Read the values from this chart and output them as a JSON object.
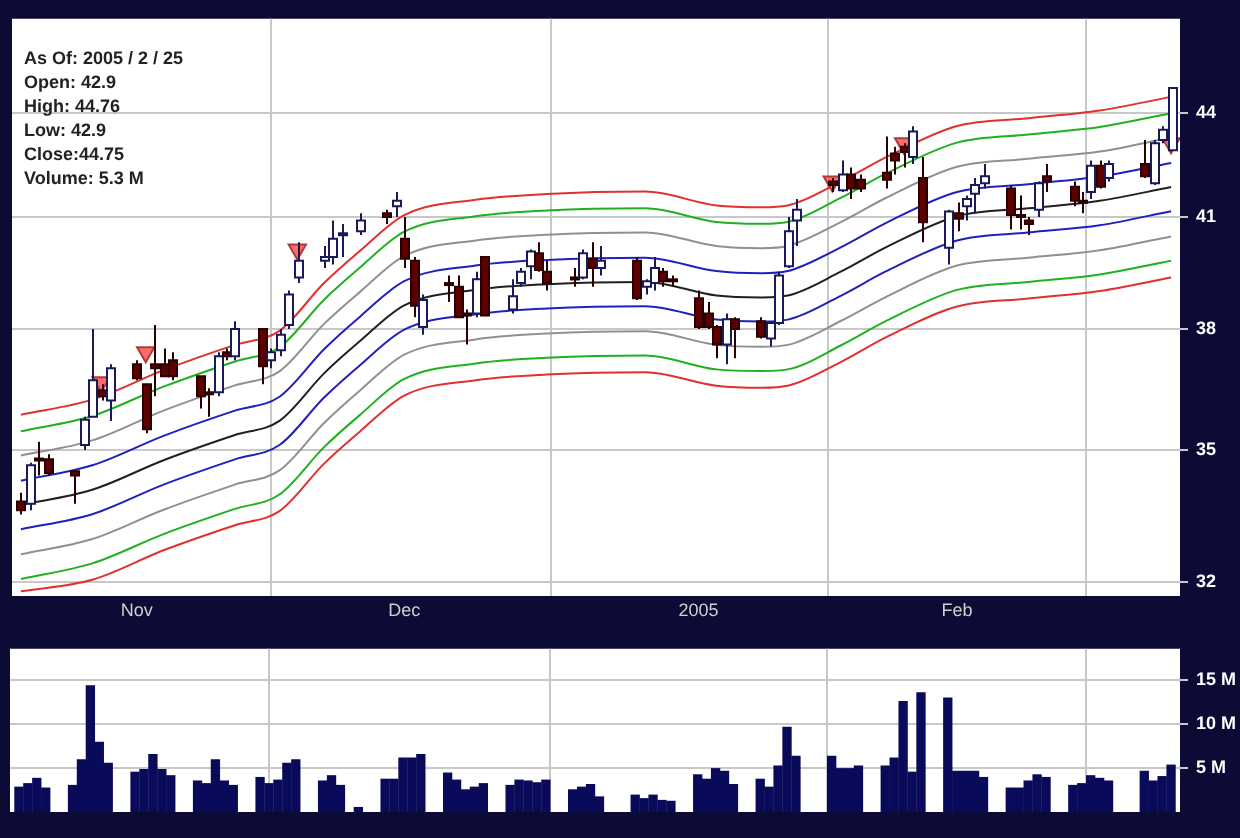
{
  "chart_data": [
    {
      "type": "candlestick",
      "x": [
        "2004-10-19",
        "2004-10-20",
        "2004-10-21",
        "2004-10-22",
        "2004-10-25",
        "2004-10-26",
        "2004-10-27",
        "2004-10-28",
        "2004-10-29",
        "2004-11-01",
        "2004-11-02",
        "2004-11-03",
        "2004-11-04",
        "2004-11-05",
        "2004-11-08",
        "2004-11-09",
        "2004-11-10",
        "2004-11-11",
        "2004-11-12",
        "2004-11-15",
        "2004-11-16",
        "2004-11-17",
        "2004-11-18",
        "2004-11-19",
        "2004-11-22",
        "2004-11-23",
        "2004-11-24",
        "2004-11-26",
        "2004-11-29",
        "2004-11-30",
        "2004-12-01",
        "2004-12-02",
        "2004-12-03",
        "2004-12-06",
        "2004-12-07",
        "2004-12-08",
        "2004-12-09",
        "2004-12-10",
        "2004-12-13",
        "2004-12-14",
        "2004-12-15",
        "2004-12-16",
        "2004-12-17",
        "2004-12-20",
        "2004-12-21",
        "2004-12-22",
        "2004-12-23",
        "2004-12-27",
        "2004-12-28",
        "2004-12-29",
        "2004-12-30",
        "2004-12-31",
        "2005-01-03",
        "2005-01-04",
        "2005-01-05",
        "2005-01-06",
        "2005-01-07",
        "2005-01-10",
        "2005-01-11",
        "2005-01-12",
        "2005-01-13",
        "2005-01-14",
        "2005-01-18",
        "2005-01-19",
        "2005-01-20",
        "2005-01-21",
        "2005-01-24",
        "2005-01-25",
        "2005-01-26",
        "2005-01-27",
        "2005-01-28",
        "2005-01-31",
        "2005-02-01",
        "2005-02-02",
        "2005-02-03",
        "2005-02-04",
        "2005-02-07",
        "2005-02-08",
        "2005-02-09",
        "2005-02-10",
        "2005-02-11",
        "2005-02-14",
        "2005-02-15",
        "2005-02-16",
        "2005-02-17",
        "2005-02-18",
        "2005-02-22",
        "2005-02-23",
        "2005-02-24",
        "2005-02-25"
      ],
      "ohlc": [
        [
          33.8,
          34.0,
          33.5,
          33.6
        ],
        [
          33.75,
          34.7,
          33.6,
          34.64
        ],
        [
          34.8,
          35.2,
          34.4,
          34.8
        ],
        [
          34.78,
          34.9,
          34.4,
          34.46
        ],
        [
          34.5,
          34.5,
          33.75,
          34.4
        ],
        [
          35.12,
          35.8,
          35.0,
          35.73
        ],
        [
          35.8,
          38.0,
          35.8,
          36.7
        ],
        [
          36.45,
          36.6,
          36.2,
          36.3
        ],
        [
          36.2,
          37.1,
          35.7,
          37.0
        ],
        [
          37.1,
          37.2,
          36.7,
          36.75
        ],
        [
          36.6,
          36.6,
          35.4,
          35.5
        ],
        [
          37.1,
          38.1,
          36.3,
          37.0
        ],
        [
          37.1,
          37.5,
          36.8,
          36.8
        ],
        [
          37.2,
          37.4,
          36.7,
          36.8
        ],
        [
          36.8,
          36.8,
          36.0,
          36.3
        ],
        [
          36.4,
          36.5,
          35.8,
          36.35
        ],
        [
          36.4,
          37.4,
          36.3,
          37.3
        ],
        [
          37.4,
          37.5,
          37.2,
          37.3
        ],
        [
          37.3,
          38.2,
          37.2,
          38.0
        ],
        [
          38.0,
          38.0,
          36.6,
          37.05
        ],
        [
          37.2,
          37.5,
          37.0,
          37.4
        ],
        [
          37.45,
          38.0,
          37.3,
          37.85
        ],
        [
          38.1,
          39.0,
          38.0,
          38.9
        ],
        [
          39.35,
          40.3,
          39.2,
          39.8
        ],
        [
          39.8,
          40.2,
          39.6,
          39.9
        ],
        [
          39.9,
          40.9,
          39.7,
          40.4
        ],
        [
          40.5,
          40.8,
          39.9,
          40.55
        ],
        [
          40.6,
          41.1,
          40.5,
          40.9
        ],
        [
          41.1,
          41.2,
          40.8,
          41.0
        ],
        [
          41.3,
          41.7,
          41.0,
          41.45
        ],
        [
          40.4,
          41.0,
          39.6,
          39.85
        ],
        [
          39.8,
          39.9,
          38.3,
          38.6
        ],
        [
          38.05,
          38.9,
          37.85,
          38.75
        ],
        [
          39.2,
          39.4,
          38.7,
          39.15
        ],
        [
          39.1,
          39.4,
          38.3,
          38.3
        ],
        [
          38.4,
          38.5,
          37.6,
          38.35
        ],
        [
          38.4,
          39.5,
          38.3,
          39.3
        ],
        [
          39.9,
          39.9,
          38.35,
          38.35
        ],
        [
          38.5,
          39.3,
          38.4,
          38.85
        ],
        [
          39.2,
          39.6,
          39.1,
          39.5
        ],
        [
          39.65,
          40.1,
          39.3,
          40.05
        ],
        [
          40.0,
          40.3,
          39.5,
          39.55
        ],
        [
          39.5,
          39.8,
          39.0,
          39.2
        ],
        [
          39.35,
          39.6,
          39.1,
          39.35
        ],
        [
          39.35,
          40.1,
          39.3,
          40.0
        ],
        [
          39.85,
          40.3,
          39.1,
          39.6
        ],
        [
          39.6,
          40.2,
          39.4,
          39.8
        ],
        [
          39.8,
          39.9,
          38.75,
          38.8
        ],
        [
          39.1,
          39.3,
          38.9,
          39.25
        ],
        [
          39.2,
          39.9,
          39.0,
          39.6
        ],
        [
          39.5,
          39.6,
          39.1,
          39.25
        ],
        [
          39.3,
          39.4,
          39.1,
          39.25
        ],
        [
          38.8,
          39.0,
          38.0,
          38.05
        ],
        [
          38.4,
          38.7,
          38.0,
          38.05
        ],
        [
          38.05,
          38.1,
          37.25,
          37.6
        ],
        [
          37.6,
          38.4,
          37.1,
          38.25
        ],
        [
          38.25,
          38.3,
          37.25,
          38.0
        ],
        [
          38.2,
          38.3,
          37.75,
          37.8
        ],
        [
          37.75,
          38.2,
          37.55,
          38.15
        ],
        [
          38.15,
          39.5,
          38.1,
          39.4
        ],
        [
          39.65,
          41.0,
          39.6,
          40.6
        ],
        [
          40.9,
          41.5,
          40.2,
          41.2
        ],
        [
          42.0,
          42.1,
          41.7,
          41.9
        ],
        [
          41.75,
          42.6,
          41.7,
          42.2
        ],
        [
          42.2,
          42.4,
          41.5,
          41.8
        ],
        [
          42.05,
          42.2,
          41.7,
          41.8
        ],
        [
          42.25,
          43.3,
          41.8,
          42.05
        ],
        [
          42.8,
          43.0,
          42.2,
          42.6
        ],
        [
          43.0,
          43.1,
          42.4,
          42.85
        ],
        [
          42.7,
          43.6,
          42.5,
          43.45
        ],
        [
          42.1,
          42.7,
          40.3,
          40.85
        ],
        [
          40.15,
          41.2,
          39.7,
          41.15
        ],
        [
          41.1,
          41.4,
          40.6,
          40.95
        ],
        [
          41.3,
          41.6,
          40.9,
          41.5
        ],
        [
          41.65,
          42.1,
          41.1,
          41.9
        ],
        [
          41.95,
          42.5,
          41.8,
          42.15
        ],
        [
          41.8,
          41.9,
          40.65,
          41.05
        ],
        [
          41.05,
          41.6,
          40.65,
          41.0
        ],
        [
          40.9,
          41.0,
          40.5,
          40.8
        ],
        [
          41.2,
          42.0,
          41.0,
          41.95
        ],
        [
          42.15,
          42.5,
          41.7,
          42.0
        ],
        [
          41.85,
          42.0,
          41.3,
          41.45
        ],
        [
          41.45,
          41.7,
          41.1,
          41.45
        ],
        [
          41.7,
          42.6,
          41.5,
          42.45
        ],
        [
          42.45,
          42.6,
          41.8,
          41.85
        ],
        [
          42.1,
          42.6,
          42.0,
          42.5
        ],
        [
          42.5,
          43.2,
          42.1,
          42.15
        ],
        [
          41.95,
          43.2,
          41.9,
          43.1
        ],
        [
          43.2,
          43.6,
          43.1,
          43.5
        ],
        [
          42.9,
          44.76,
          42.9,
          44.75
        ]
      ],
      "series": [
        {
          "type": "line",
          "color": "#e03030",
          "x": [
            "2004-10-19",
            "2004-10-27",
            "2004-11-04",
            "2004-11-12",
            "2004-11-17",
            "2004-11-22",
            "2004-11-26",
            "2004-12-01",
            "2004-12-09",
            "2004-12-17",
            "2004-12-28",
            "2005-01-05",
            "2005-01-10",
            "2005-01-13",
            "2005-01-19",
            "2005-01-24",
            "2005-02-01",
            "2005-02-09",
            "2005-02-17",
            "2005-02-25"
          ],
          "values": [
            35.85,
            36.22,
            36.95,
            37.59,
            37.95,
            39.2,
            40.06,
            41.05,
            41.48,
            41.64,
            41.71,
            41.32,
            41.27,
            41.32,
            42.0,
            42.69,
            43.61,
            43.84,
            44.07,
            44.48
          ]
        },
        {
          "type": "line",
          "color": "#20b020",
          "x": [
            "2004-10-19",
            "2004-10-27",
            "2004-11-04",
            "2004-11-12",
            "2004-11-17",
            "2004-11-22",
            "2004-11-26",
            "2004-12-01",
            "2004-12-09",
            "2004-12-17",
            "2004-12-28",
            "2005-01-05",
            "2005-01-10",
            "2005-01-13",
            "2005-01-19",
            "2005-01-24",
            "2005-02-01",
            "2005-02-09",
            "2005-02-17",
            "2005-02-25"
          ],
          "values": [
            35.45,
            35.82,
            36.54,
            37.17,
            37.53,
            38.76,
            39.61,
            40.59,
            41.02,
            41.18,
            41.24,
            40.86,
            40.81,
            40.86,
            41.54,
            42.22,
            43.12,
            43.36,
            43.58,
            43.99
          ]
        },
        {
          "type": "line",
          "color": "#909090",
          "x": [
            "2004-10-19",
            "2004-10-27",
            "2004-11-04",
            "2004-11-12",
            "2004-11-17",
            "2004-11-22",
            "2004-11-26",
            "2004-12-01",
            "2004-12-09",
            "2004-12-17",
            "2004-12-28",
            "2005-01-05",
            "2005-01-10",
            "2005-01-13",
            "2005-01-19",
            "2005-01-24",
            "2005-02-01",
            "2005-02-09",
            "2005-02-17",
            "2005-02-25"
          ],
          "values": [
            34.87,
            35.23,
            35.95,
            36.57,
            36.92,
            38.13,
            38.96,
            39.93,
            40.35,
            40.51,
            40.57,
            40.2,
            40.14,
            40.2,
            40.86,
            41.53,
            42.42,
            42.65,
            42.86,
            43.27
          ]
        },
        {
          "type": "line",
          "color": "#2020c0",
          "x": [
            "2004-10-19",
            "2004-10-27",
            "2004-11-04",
            "2004-11-12",
            "2004-11-17",
            "2004-11-22",
            "2004-11-26",
            "2004-12-01",
            "2004-12-09",
            "2004-12-17",
            "2004-12-28",
            "2005-01-05",
            "2005-01-10",
            "2005-01-13",
            "2005-01-19",
            "2005-01-24",
            "2005-02-01",
            "2005-02-09",
            "2005-02-17",
            "2005-02-25"
          ],
          "values": [
            34.28,
            34.64,
            35.34,
            35.95,
            36.29,
            37.48,
            38.31,
            39.25,
            39.67,
            39.82,
            39.88,
            39.52,
            39.46,
            39.52,
            40.17,
            40.83,
            41.7,
            41.92,
            42.14,
            42.53
          ]
        },
        {
          "type": "line",
          "color": "#202020",
          "x": [
            "2004-10-19",
            "2004-10-27",
            "2004-11-04",
            "2004-11-12",
            "2004-11-17",
            "2004-11-22",
            "2004-11-26",
            "2004-12-01",
            "2004-12-09",
            "2004-12-17",
            "2004-12-28",
            "2005-01-05",
            "2005-01-10",
            "2005-01-13",
            "2005-01-19",
            "2005-01-24",
            "2005-02-01",
            "2005-02-09",
            "2005-02-17",
            "2005-02-25"
          ],
          "values": [
            33.72,
            34.07,
            34.76,
            35.36,
            35.7,
            36.87,
            37.68,
            38.61,
            39.02,
            39.17,
            39.23,
            38.87,
            38.82,
            38.87,
            39.51,
            40.16,
            41.02,
            41.24,
            41.45,
            41.84
          ]
        },
        {
          "type": "line",
          "color": "#2020c0",
          "x": [
            "2004-10-19",
            "2004-10-27",
            "2004-11-04",
            "2004-11-12",
            "2004-11-17",
            "2004-11-22",
            "2004-11-26",
            "2004-12-01",
            "2004-12-09",
            "2004-12-17",
            "2004-12-28",
            "2005-01-05",
            "2005-01-10",
            "2005-01-13",
            "2005-01-19",
            "2005-01-24",
            "2005-02-01",
            "2005-02-09",
            "2005-02-17",
            "2005-02-25"
          ],
          "values": [
            33.17,
            33.51,
            34.19,
            34.78,
            35.12,
            36.27,
            37.07,
            37.98,
            38.38,
            38.53,
            38.59,
            38.24,
            38.19,
            38.24,
            38.87,
            39.51,
            40.35,
            40.57,
            40.77,
            41.16
          ]
        },
        {
          "type": "line",
          "color": "#909090",
          "x": [
            "2004-10-19",
            "2004-10-27",
            "2004-11-04",
            "2004-11-12",
            "2004-11-17",
            "2004-11-22",
            "2004-11-26",
            "2004-12-01",
            "2004-12-09",
            "2004-12-17",
            "2004-12-28",
            "2005-01-05",
            "2005-01-10",
            "2005-01-13",
            "2005-01-19",
            "2005-01-24",
            "2005-02-01",
            "2005-02-09",
            "2005-02-17",
            "2005-02-25"
          ],
          "values": [
            32.61,
            32.95,
            33.61,
            34.19,
            34.52,
            35.65,
            36.44,
            37.34,
            37.73,
            37.88,
            37.94,
            37.59,
            37.54,
            37.59,
            38.21,
            38.83,
            39.67,
            39.88,
            40.08,
            40.46
          ]
        },
        {
          "type": "line",
          "color": "#20b020",
          "x": [
            "2004-10-19",
            "2004-10-27",
            "2004-11-04",
            "2004-11-12",
            "2004-11-17",
            "2004-11-22",
            "2004-11-26",
            "2004-12-01",
            "2004-12-09",
            "2004-12-17",
            "2004-12-28",
            "2005-01-05",
            "2005-01-10",
            "2005-01-13",
            "2005-01-19",
            "2005-01-24",
            "2005-02-01",
            "2005-02-09",
            "2005-02-17",
            "2005-02-25"
          ],
          "values": [
            32.07,
            32.41,
            33.06,
            33.63,
            33.96,
            35.07,
            35.84,
            36.73,
            37.12,
            37.26,
            37.32,
            36.97,
            36.93,
            36.97,
            37.58,
            38.2,
            39.02,
            39.23,
            39.43,
            39.8
          ]
        },
        {
          "type": "line",
          "color": "#e03030",
          "x": [
            "2004-10-19",
            "2004-10-27",
            "2004-11-04",
            "2004-11-12",
            "2004-11-17",
            "2004-11-22",
            "2004-11-26",
            "2004-12-01",
            "2004-12-09",
            "2004-12-17",
            "2004-12-28",
            "2005-01-05",
            "2005-01-10",
            "2005-01-13",
            "2005-01-19",
            "2005-01-24",
            "2005-02-01",
            "2005-02-09",
            "2005-02-17",
            "2005-02-25"
          ],
          "values": [
            31.8,
            32.05,
            32.7,
            33.26,
            33.58,
            34.68,
            35.44,
            36.32,
            36.7,
            36.84,
            36.9,
            36.56,
            36.51,
            36.56,
            37.16,
            37.78,
            38.58,
            38.79,
            38.99,
            39.35
          ]
        },
        {
          "type": "scatter",
          "color": "#ff6b6b",
          "marker": "triangle",
          "x": [
            "2004-10-28",
            "2004-11-02",
            "2004-11-19",
            "2005-01-18",
            "2005-01-26",
            "2005-02-25"
          ],
          "values": [
            36.65,
            37.4,
            40.1,
            42.0,
            43.1,
            43.1
          ]
        }
      ],
      "xlim": [
        "2004-10-18",
        "2005-02-26"
      ],
      "xticks": [
        {
          "value": "2004-11-01",
          "label": "Nov"
        },
        {
          "value": "2004-12-01",
          "label": "Dec"
        },
        {
          "value": "2005-01-03",
          "label": "2005"
        },
        {
          "value": "2005-02-01",
          "label": "Feb"
        }
      ],
      "ylim": [
        31.7,
        46.9
      ],
      "yticks": [
        32,
        35,
        38,
        41,
        44
      ],
      "log": "y",
      "grid": true,
      "annotations": [
        "As Of: 2005 / 2 / 25",
        "Open: 42.9",
        "High: 44.76",
        "Low: 42.9",
        "Close:44.75",
        "Volume: 5.3 M"
      ]
    },
    {
      "type": "bar",
      "color": "#0a0a5a",
      "x": [
        "2004-10-19",
        "2004-10-20",
        "2004-10-21",
        "2004-10-22",
        "2004-10-25",
        "2004-10-26",
        "2004-10-27",
        "2004-10-28",
        "2004-10-29",
        "2004-11-01",
        "2004-11-02",
        "2004-11-03",
        "2004-11-04",
        "2004-11-05",
        "2004-11-08",
        "2004-11-09",
        "2004-11-10",
        "2004-11-11",
        "2004-11-12",
        "2004-11-15",
        "2004-11-16",
        "2004-11-17",
        "2004-11-18",
        "2004-11-19",
        "2004-11-22",
        "2004-11-23",
        "2004-11-24",
        "2004-11-26",
        "2004-11-29",
        "2004-11-30",
        "2004-12-01",
        "2004-12-02",
        "2004-12-03",
        "2004-12-06",
        "2004-12-07",
        "2004-12-08",
        "2004-12-09",
        "2004-12-10",
        "2004-12-13",
        "2004-12-14",
        "2004-12-15",
        "2004-12-16",
        "2004-12-17",
        "2004-12-20",
        "2004-12-21",
        "2004-12-22",
        "2004-12-23",
        "2004-12-27",
        "2004-12-28",
        "2004-12-29",
        "2004-12-30",
        "2004-12-31",
        "2005-01-03",
        "2005-01-04",
        "2005-01-05",
        "2005-01-06",
        "2005-01-07",
        "2005-01-10",
        "2005-01-11",
        "2005-01-12",
        "2005-01-13",
        "2005-01-14",
        "2005-01-18",
        "2005-01-19",
        "2005-01-20",
        "2005-01-21",
        "2005-01-24",
        "2005-01-25",
        "2005-01-26",
        "2005-01-27",
        "2005-01-28",
        "2005-01-31",
        "2005-02-01",
        "2005-02-02",
        "2005-02-03",
        "2005-02-04",
        "2005-02-07",
        "2005-02-08",
        "2005-02-09",
        "2005-02-10",
        "2005-02-11",
        "2005-02-14",
        "2005-02-15",
        "2005-02-16",
        "2005-02-17",
        "2005-02-18",
        "2005-02-22",
        "2005-02-23",
        "2005-02-24",
        "2005-02-25"
      ],
      "values": [
        2.8,
        3.2,
        3.8,
        2.7,
        3.0,
        5.9,
        14.3,
        7.9,
        5.5,
        4.5,
        4.8,
        6.5,
        4.8,
        4.1,
        3.5,
        3.2,
        5.9,
        3.5,
        3.0,
        3.9,
        3.2,
        3.6,
        5.5,
        5.9,
        3.5,
        4.1,
        3.0,
        0.5,
        3.7,
        3.7,
        6.1,
        6.1,
        6.5,
        4.4,
        3.6,
        2.5,
        2.8,
        3.2,
        3.0,
        3.6,
        3.5,
        3.3,
        3.6,
        2.5,
        2.8,
        3.1,
        1.7,
        1.9,
        1.5,
        1.9,
        1.3,
        1.2,
        4.2,
        3.7,
        4.9,
        4.6,
        3.1,
        3.7,
        2.8,
        5.2,
        9.6,
        6.3,
        6.3,
        4.9,
        4.9,
        5.2,
        5.2,
        6.1,
        12.5,
        4.5,
        13.5,
        12.9,
        4.6,
        4.6,
        4.6,
        3.9,
        2.7,
        2.7,
        3.5,
        4.2,
        3.9,
        3.0,
        3.2,
        4.1,
        3.8,
        3.5,
        4.6,
        3.5,
        4.0,
        5.3
      ],
      "xlim": [
        "2004-10-18",
        "2005-02-26"
      ],
      "xticks": [
        {
          "value": "2004-11-01",
          "label": null
        },
        {
          "value": "2004-12-01",
          "label": null
        },
        {
          "value": "2005-01-03",
          "label": null
        },
        {
          "value": "2005-02-01",
          "label": null
        }
      ],
      "ylim": [
        0,
        18.5
      ],
      "yticks": [
        {
          "value": 5,
          "label": "5 M"
        },
        {
          "value": 10,
          "label": "10 M"
        },
        {
          "value": 15,
          "label": "15 M"
        }
      ],
      "grid": true,
      "tick_labels": "y"
    }
  ]
}
